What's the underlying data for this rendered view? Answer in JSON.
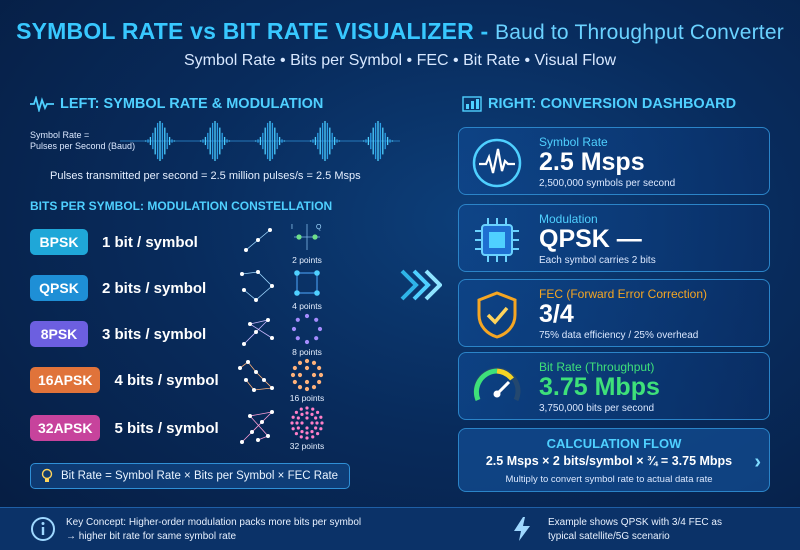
{
  "header": {
    "title_main": "SYMBOL RATE vs BIT RATE VISUALIZER",
    "title_sep": " - ",
    "title_sub": "Baud to Throughput Converter",
    "subtitle": "Symbol Rate • Bits per Symbol • FEC • Bit Rate • Visual Flow"
  },
  "left": {
    "heading": "LEFT: SYMBOL RATE & MODULATION",
    "wave_label_1": "Symbol Rate =",
    "wave_label_2": "Pulses per Second (Baud)",
    "pulses_line": "Pulses transmitted per second = 2.5 million pulses/s = 2.5 Msps",
    "bps_heading": "BITS PER SYMBOL: MODULATION CONSTELLATION",
    "modulations": [
      {
        "name": "BPSK",
        "bits": "1 bit / symbol",
        "points": "2 points",
        "color": "#1fa7d8"
      },
      {
        "name": "QPSK",
        "bits": "2 bits / symbol",
        "points": "4 points",
        "color": "#1e8fd6"
      },
      {
        "name": "8PSK",
        "bits": "3 bits / symbol",
        "points": "8 points",
        "color": "#6c5fe0"
      },
      {
        "name": "16APSK",
        "bits": "4 bits / symbol",
        "points": "16 points",
        "color": "#e0733a"
      },
      {
        "name": "32APSK",
        "bits": "5 bits / symbol",
        "points": "32 points",
        "color": "#c7439c"
      }
    ],
    "iq_i": "I",
    "iq_q": "Q",
    "formula": "Bit Rate = Symbol Rate × Bits per Symbol × FEC Rate"
  },
  "right": {
    "heading": "RIGHT: CONVERSION DASHBOARD",
    "cards": [
      {
        "label": "Symbol Rate",
        "value": "2.5 Msps",
        "note": "2,500,000 symbols per second",
        "icon": "pulse-icon"
      },
      {
        "label": "Modulation",
        "value": "QPSK —",
        "note": "Each symbol carries 2 bits",
        "icon": "chip-icon"
      },
      {
        "label": "FEC (Forward Error Correction)",
        "value": "3/4",
        "note": "75% data efficiency / 25% overhead",
        "icon": "shield-check-icon"
      },
      {
        "label": "Bit Rate (Throughput)",
        "value": "3.75 Mbps",
        "note": "3,750,000 bits per second",
        "icon": "gauge-icon"
      }
    ],
    "calc": {
      "heading": "CALCULATION FLOW",
      "formula": "2.5 Msps × 2 bits/symbol × ¾ = 3.75 Mbps",
      "note": "Multiply to convert symbol rate to actual data rate"
    }
  },
  "footer": {
    "left_1": "Key Concept: Higher-order modulation packs more bits per symbol",
    "left_2": "→ higher bit rate for same symbol rate",
    "right_1": "Example shows QPSK with 3/4 FEC as",
    "right_2": "typical satellite/5G scenario"
  },
  "colors": {
    "accent": "#4fd0ff",
    "bitrate_green": "#3ee07a",
    "fec_orange": "#f5a623",
    "background": "#082b5c"
  }
}
